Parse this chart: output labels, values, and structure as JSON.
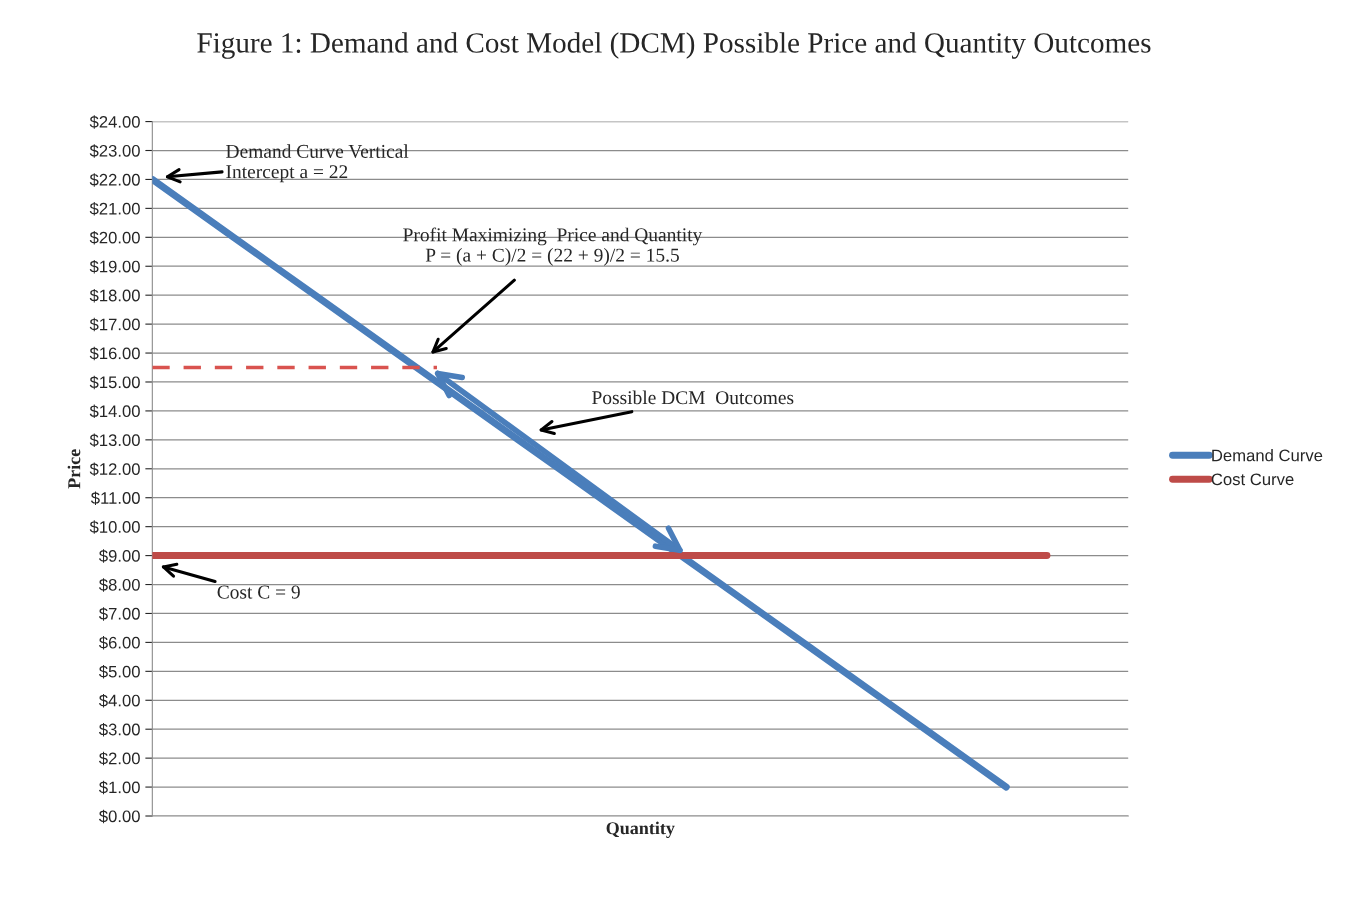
{
  "chart_data": {
    "type": "line",
    "title": "Figure 1: Demand and Cost Model (DCM) Possible Price and Quantity Outcomes",
    "xlabel": "Quantity",
    "ylabel": "Price",
    "categories": [
      null,
      null,
      null,
      null,
      null,
      null,
      null,
      null,
      null,
      null,
      null,
      null,
      null,
      null,
      null,
      null,
      null,
      null,
      null,
      null,
      null,
      null,
      null,
      null,
      null
    ],
    "series": [
      {
        "name": "Demand Curve",
        "color": "#4a7ebb",
        "values": [
          22,
          21,
          20,
          19,
          18,
          17,
          16,
          15,
          14,
          13,
          12,
          11,
          10,
          9,
          8,
          7,
          6,
          5,
          4,
          3,
          2,
          1,
          null,
          null,
          null
        ]
      },
      {
        "name": "Cost Curve",
        "color": "#be4b48",
        "values": [
          9,
          9,
          9,
          9,
          9,
          9,
          9,
          9,
          9,
          9,
          9,
          9,
          9,
          9,
          9,
          9,
          9,
          9,
          9,
          9,
          9,
          9,
          9,
          null,
          null
        ]
      },
      {
        "color": "#d9534f",
        "values": [
          15.5,
          15.5,
          15.5,
          15.5,
          15.5,
          15.5,
          15.5,
          15.5,
          null,
          null,
          null,
          null,
          null,
          null,
          null,
          null,
          null,
          null,
          null,
          null,
          null,
          null,
          null,
          null,
          null
        ],
        "line_style": "dashed"
      }
    ],
    "ylim": [
      0,
      24
    ],
    "yticks": [
      {
        "value": 0,
        "label": "$0.00"
      },
      {
        "value": 1,
        "label": "$1.00"
      },
      {
        "value": 2,
        "label": "$2.00"
      },
      {
        "value": 3,
        "label": "$3.00"
      },
      {
        "value": 4,
        "label": "$4.00"
      },
      {
        "value": 5,
        "label": "$5.00"
      },
      {
        "value": 6,
        "label": "$6.00"
      },
      {
        "value": 7,
        "label": "$7.00"
      },
      {
        "value": 8,
        "label": "$8.00"
      },
      {
        "value": 9,
        "label": "$9.00"
      },
      {
        "value": 10,
        "label": "$10.00"
      },
      {
        "value": 11,
        "label": "$11.00"
      },
      {
        "value": 12,
        "label": "$12.00"
      },
      {
        "value": 13,
        "label": "$13.00"
      },
      {
        "value": 14,
        "label": "$14.00"
      },
      {
        "value": 15,
        "label": "$15.00"
      },
      {
        "value": 16,
        "label": "$16.00"
      },
      {
        "value": 17,
        "label": "$17.00"
      },
      {
        "value": 18,
        "label": "$18.00"
      },
      {
        "value": 19,
        "label": "$19.00"
      },
      {
        "value": 20,
        "label": "$20.00"
      },
      {
        "value": 21,
        "label": "$21.00"
      },
      {
        "value": 22,
        "label": "$22.00"
      },
      {
        "value": 23,
        "label": "$23.00"
      },
      {
        "value": 24,
        "label": "$24.00"
      }
    ],
    "grid": "y",
    "legend": "right",
    "tick_labels": "y",
    "annotations": [
      "Demand Curve Vertical\nIntercept a = 22",
      "Profit Maximizing  Price and Quantity\nP = (a + C)/2 = (22 + 9)/2 = 15.5",
      "Possible DCM  Outcomes",
      "Cost C = 9"
    ]
  }
}
